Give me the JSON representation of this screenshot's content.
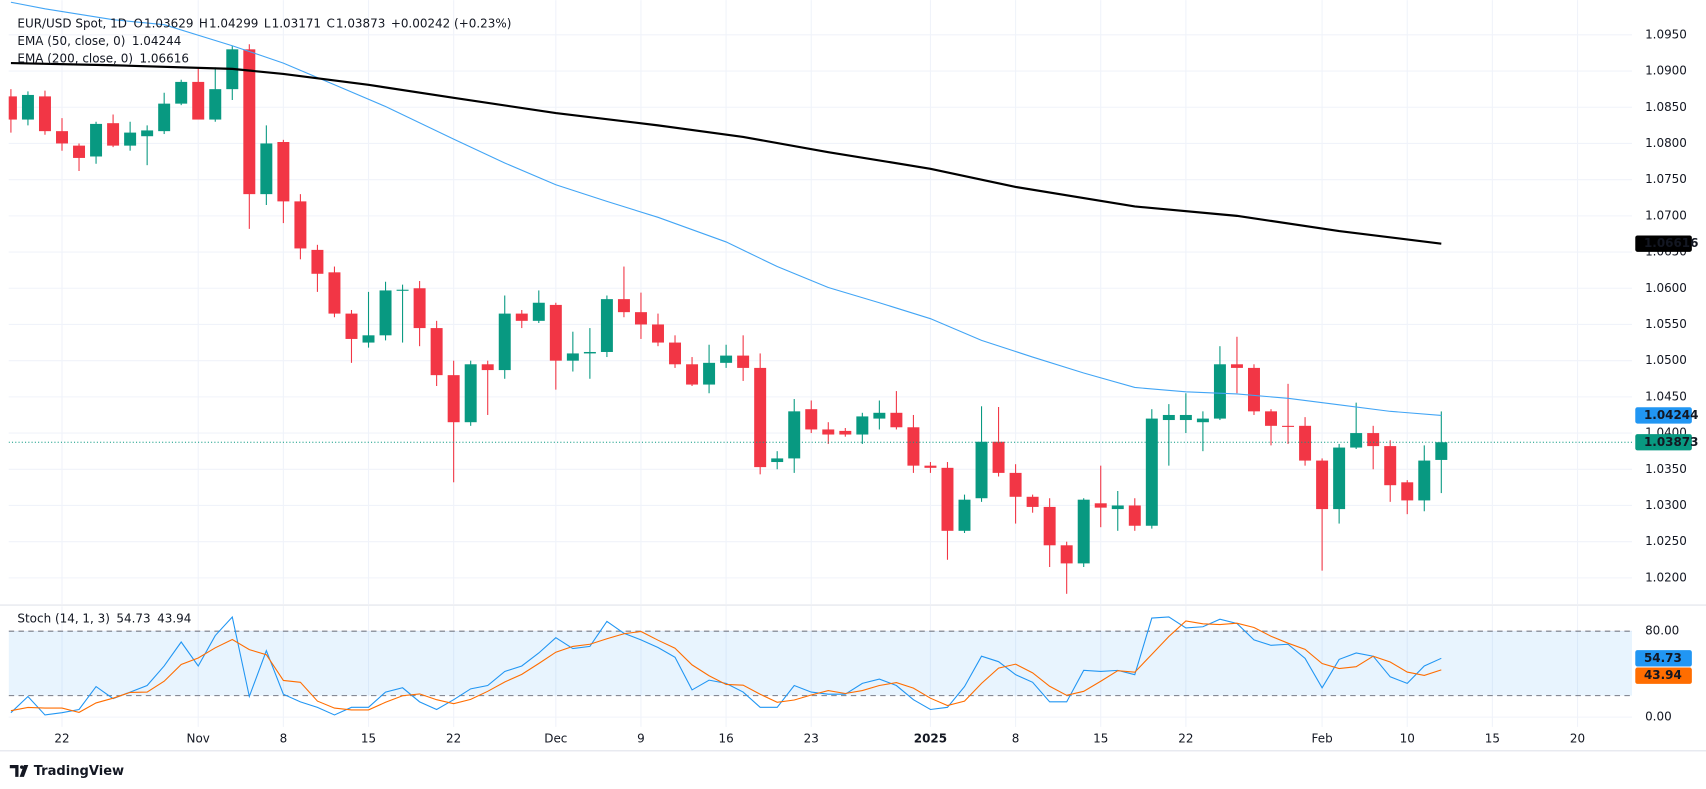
{
  "brand": "TradingView",
  "chart_data": [
    {
      "type": "candlestick",
      "title": "EUR/USD Spot, 1D",
      "ohlc_labels": [
        "O",
        "H",
        "L",
        "C"
      ],
      "change": "+0.00242 (+0.23%)",
      "colors": {
        "up": "#089981",
        "down": "#f23645"
      },
      "grid": true,
      "open": [
        1.0865,
        1.0833,
        1.0865,
        1.0817,
        1.0797,
        1.0782,
        1.0828,
        1.0797,
        1.081,
        1.0817,
        1.0855,
        1.0885,
        1.0833,
        1.0875,
        1.093,
        1.073,
        1.0802,
        1.072,
        1.0653,
        1.0622,
        1.0565,
        1.0525,
        1.0535,
        1.0597,
        1.06,
        1.0545,
        1.048,
        1.0415,
        1.0495,
        1.0487,
        1.0565,
        1.0555,
        1.0577,
        1.05,
        1.051,
        1.0512,
        1.0585,
        1.0567,
        1.055,
        1.0525,
        1.0495,
        1.0467,
        1.0497,
        1.0507,
        1.049,
        1.036,
        1.0365,
        1.0433,
        1.0405,
        1.0403,
        1.0398,
        1.042,
        1.0428,
        1.0408,
        1.0355,
        1.0352,
        1.0265,
        1.031,
        1.0388,
        1.0345,
        1.0312,
        1.0298,
        1.0245,
        1.022,
        1.0303,
        1.0295,
        1.03,
        1.0272,
        1.0418,
        1.0418,
        1.0415,
        1.042,
        1.0495,
        1.049,
        1.043,
        1.041,
        1.041,
        1.0362,
        1.0295,
        1.038,
        1.04,
        1.0382,
        1.0332,
        1.0307,
        1.03629
      ],
      "high": [
        1.0875,
        1.0872,
        1.0873,
        1.0835,
        1.08,
        1.083,
        1.084,
        1.083,
        1.0825,
        1.087,
        1.0888,
        1.0905,
        1.0905,
        1.0935,
        1.0937,
        1.0825,
        1.0805,
        1.073,
        1.066,
        1.063,
        1.057,
        1.0595,
        1.0609,
        1.0605,
        1.061,
        1.0555,
        1.05,
        1.05,
        1.05,
        1.059,
        1.057,
        1.0597,
        1.058,
        1.054,
        1.0545,
        1.059,
        1.063,
        1.0594,
        1.0565,
        1.0535,
        1.0505,
        1.0522,
        1.0522,
        1.0535,
        1.051,
        1.0375,
        1.0447,
        1.0445,
        1.0415,
        1.0407,
        1.0428,
        1.0445,
        1.0458,
        1.0425,
        1.036,
        1.036,
        1.0315,
        1.0437,
        1.0436,
        1.0357,
        1.0315,
        1.031,
        1.025,
        1.031,
        1.0355,
        1.032,
        1.031,
        1.0433,
        1.044,
        1.0455,
        1.043,
        1.052,
        1.0533,
        1.0495,
        1.0433,
        1.0468,
        1.0422,
        1.0365,
        1.0385,
        1.0442,
        1.041,
        1.039,
        1.0335,
        1.0383,
        1.04299
      ],
      "low": [
        1.0815,
        1.0825,
        1.0812,
        1.079,
        1.0762,
        1.0772,
        1.0795,
        1.079,
        1.077,
        1.0813,
        1.0853,
        1.0833,
        1.083,
        1.086,
        1.0682,
        1.0715,
        1.069,
        1.064,
        1.0595,
        1.056,
        1.0497,
        1.0518,
        1.0528,
        1.0525,
        1.052,
        1.0465,
        1.0332,
        1.041,
        1.0425,
        1.0475,
        1.0545,
        1.0552,
        1.046,
        1.0485,
        1.0475,
        1.0505,
        1.056,
        1.053,
        1.052,
        1.049,
        1.0465,
        1.0455,
        1.049,
        1.0472,
        1.0343,
        1.035,
        1.0345,
        1.04,
        1.0385,
        1.0395,
        1.0385,
        1.0405,
        1.0405,
        1.0345,
        1.0345,
        1.0225,
        1.0262,
        1.0305,
        1.034,
        1.0275,
        1.029,
        1.0215,
        1.0178,
        1.0215,
        1.027,
        1.0265,
        1.0265,
        1.0268,
        1.0355,
        1.04,
        1.0375,
        1.0418,
        1.0455,
        1.0425,
        1.0383,
        1.0385,
        1.0355,
        1.021,
        1.0275,
        1.0378,
        1.035,
        1.0305,
        1.0288,
        1.0292,
        1.03171
      ],
      "close": [
        1.0833,
        1.0867,
        1.0817,
        1.08,
        1.078,
        1.0827,
        1.0797,
        1.0815,
        1.0818,
        1.0855,
        1.0885,
        1.0833,
        1.0875,
        1.093,
        1.073,
        1.08,
        1.072,
        1.0655,
        1.062,
        1.0565,
        1.053,
        1.0535,
        1.0597,
        1.0598,
        1.0545,
        1.048,
        1.0415,
        1.0495,
        1.0487,
        1.0565,
        1.0555,
        1.058,
        1.05,
        1.051,
        1.0512,
        1.0585,
        1.0567,
        1.055,
        1.0525,
        1.0495,
        1.0467,
        1.0497,
        1.0507,
        1.049,
        1.0353,
        1.0365,
        1.043,
        1.0405,
        1.0398,
        1.0398,
        1.0423,
        1.0428,
        1.0408,
        1.0355,
        1.0352,
        1.0265,
        1.0308,
        1.0388,
        1.0345,
        1.0312,
        1.0298,
        1.0245,
        1.022,
        1.0308,
        1.0297,
        1.03,
        1.0272,
        1.042,
        1.0425,
        1.0425,
        1.042,
        1.0495,
        1.049,
        1.043,
        1.041,
        1.041,
        1.0362,
        1.0295,
        1.038,
        1.04,
        1.0382,
        1.0328,
        1.0307,
        1.0362,
        1.03873
      ],
      "series": [
        {
          "name": "EMA (50, close, 0)",
          "color": "#42a5f5",
          "x": [
            0,
            2,
            6,
            9,
            13,
            16,
            19,
            22,
            26,
            29,
            32,
            35,
            38,
            42,
            45,
            48,
            51,
            54,
            57,
            60,
            63,
            66,
            69,
            72,
            75,
            78,
            81,
            84
          ],
          "values": [
            1.0995,
            1.0986,
            1.0971,
            1.0964,
            1.0935,
            1.0911,
            1.0881,
            1.0851,
            1.0806,
            1.0773,
            1.0743,
            1.072,
            1.0698,
            1.0664,
            1.063,
            1.0601,
            1.058,
            1.0558,
            1.0528,
            1.0505,
            1.0483,
            1.0463,
            1.0457,
            1.0454,
            1.0448,
            1.0439,
            1.043,
            1.04244
          ]
        },
        {
          "name": "EMA (200, close, 0)",
          "color": "#000000",
          "x": [
            0,
            6,
            13,
            16,
            21,
            26,
            32,
            38,
            43,
            48,
            54,
            59,
            66,
            72,
            78,
            84
          ],
          "values": [
            1.0911,
            1.0908,
            1.0903,
            1.0896,
            1.0881,
            1.0863,
            1.0842,
            1.0825,
            1.0809,
            1.0788,
            1.0765,
            1.074,
            1.0713,
            1.07,
            1.0679,
            1.06616
          ]
        }
      ],
      "xlim": [
        -0.13,
        95.2
      ],
      "ylim": [
        1.0164,
        1.0998
      ],
      "yticks": [
        {
          "value": 1.02,
          "label": "1.0200"
        },
        {
          "value": 1.025,
          "label": "1.0250"
        },
        {
          "value": 1.03,
          "label": "1.0300"
        },
        {
          "value": 1.035,
          "label": "1.0350"
        },
        {
          "value": 1.04,
          "label": "1.0400"
        },
        {
          "value": 1.045,
          "label": "1.0450"
        },
        {
          "value": 1.05,
          "label": "1.0500"
        },
        {
          "value": 1.055,
          "label": "1.0550"
        },
        {
          "value": 1.06,
          "label": "1.0600"
        },
        {
          "value": 1.065,
          "label": "1.0650"
        },
        {
          "value": 1.07,
          "label": "1.0700"
        },
        {
          "value": 1.075,
          "label": "1.0750"
        },
        {
          "value": 1.08,
          "label": "1.0800"
        },
        {
          "value": 1.085,
          "label": "1.0850"
        },
        {
          "value": 1.09,
          "label": "1.0900"
        },
        {
          "value": 1.095,
          "label": "1.0950"
        }
      ],
      "xticks": [
        {
          "value": 3,
          "label": "22"
        },
        {
          "value": 11,
          "label": "Nov"
        },
        {
          "value": 16,
          "label": "8"
        },
        {
          "value": 21,
          "label": "15"
        },
        {
          "value": 26,
          "label": "22"
        },
        {
          "value": 32,
          "label": "Dec"
        },
        {
          "value": 37,
          "label": "9"
        },
        {
          "value": 42,
          "label": "16"
        },
        {
          "value": 47,
          "label": "23"
        },
        {
          "value": 54,
          "label": "2025"
        },
        {
          "value": 59,
          "label": "8"
        },
        {
          "value": 64,
          "label": "15"
        },
        {
          "value": 69,
          "label": "22"
        },
        {
          "value": 77,
          "label": "Feb"
        },
        {
          "value": 82,
          "label": "10"
        },
        {
          "value": 87,
          "label": "15"
        },
        {
          "value": 92,
          "label": "20"
        }
      ]
    },
    {
      "type": "line",
      "title": "Stoch (14, 1, 3)",
      "band": [
        20,
        80
      ],
      "band_color": "rgba(33,150,243,0.1)",
      "series": [
        {
          "name": null,
          "color": "#2196f3",
          "values": [
            4.1,
            19.2,
            2.0,
            4.1,
            7.1,
            28.4,
            17.2,
            23.3,
            29.4,
            47.6,
            69.9,
            47.6,
            75.9,
            93.2,
            19.2,
            61.8,
            21.3,
            14.2,
            9.1,
            2.0,
            9.1,
            9.1,
            23.3,
            27.3,
            14.2,
            7.1,
            16.2,
            26.3,
            29.4,
            42.5,
            47.6,
            59.7,
            73.9,
            63.8,
            65.8,
            89.1,
            78.0,
            71.9,
            64.8,
            55.7,
            25.3,
            34.4,
            31.4,
            23.3,
            9.1,
            9.1,
            29.4,
            23.3,
            21.3,
            21.3,
            31.4,
            35.4,
            29.4,
            16.2,
            7.1,
            9.1,
            28.4,
            56.7,
            51.6,
            39.5,
            32.4,
            14.2,
            14.2,
            43.5,
            42.5,
            43.5,
            39.5,
            92.2,
            93.2,
            83.0,
            84.1,
            91.1,
            87.1,
            71.9,
            66.8,
            67.8,
            54.7,
            27.3,
            53.7,
            59.7,
            56.7,
            37.5,
            31.4,
            47.6,
            54.73
          ]
        },
        {
          "name": null,
          "color": "#ff6d00",
          "values": [
            6.0,
            9.0,
            8.4,
            8.4,
            4.4,
            13.2,
            17.6,
            23.0,
            23.3,
            33.4,
            49.0,
            55.0,
            64.5,
            72.2,
            62.8,
            58.1,
            34.1,
            32.4,
            14.9,
            8.4,
            6.7,
            6.7,
            13.8,
            19.9,
            21.6,
            16.2,
            12.5,
            16.5,
            24.0,
            32.7,
            39.8,
            49.9,
            60.4,
            65.8,
            67.8,
            72.9,
            77.6,
            79.7,
            71.6,
            64.1,
            48.6,
            38.5,
            30.4,
            29.7,
            21.3,
            13.8,
            15.9,
            20.6,
            24.7,
            22.0,
            24.7,
            29.4,
            32.1,
            27.0,
            17.6,
            10.8,
            14.9,
            31.4,
            45.6,
            49.3,
            41.2,
            28.7,
            20.3,
            24.0,
            33.4,
            43.2,
            41.8,
            58.4,
            75.0,
            89.5,
            86.8,
            86.1,
            87.4,
            83.4,
            75.3,
            68.8,
            63.1,
            49.9,
            45.2,
            46.9,
            56.7,
            51.3,
            41.9,
            38.8,
            43.94
          ]
        }
      ],
      "ylim": [
        -9.1,
        103.3
      ],
      "yticks": [
        {
          "value": 0,
          "label": "0.00"
        },
        {
          "value": 80,
          "label": "80.00"
        }
      ]
    }
  ]
}
